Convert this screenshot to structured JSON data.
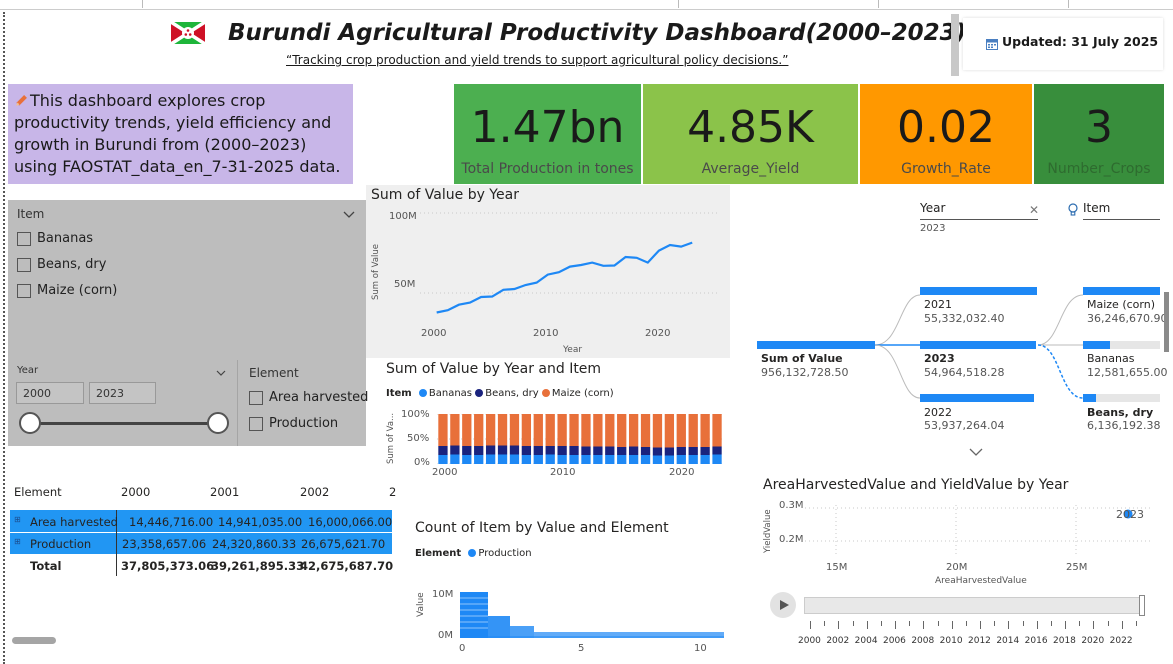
{
  "header": {
    "title": "Burundi Agricultural Productivity Dashboard(2000–2023)",
    "subtitle": "“Tracking crop production and yield trends to support agricultural policy decisions.”",
    "updated": "Updated: 31 July 2025"
  },
  "description": "This dashboard explores crop productivity trends, yield efficiency and growth in Burundi from (2000–2023) using FAOSTAT_data_en_7-31-2025 data.",
  "kpis": [
    {
      "value": "1.47bn",
      "label": "Total Production in tones",
      "color": "#4caf50"
    },
    {
      "value": "4.85K",
      "label": "Average_Yield",
      "color": "#8bc34a"
    },
    {
      "value": "0.02",
      "label": "Growth_Rate",
      "color": "#ff9800"
    },
    {
      "value": "3",
      "label": "Number_Crops",
      "color": "#388e3c"
    }
  ],
  "item_slicer": {
    "title": "Item",
    "options": [
      "Bananas",
      "Beans, dry",
      "Maize (corn)"
    ]
  },
  "year_slicer": {
    "title": "Year",
    "from": "2000",
    "to": "2023",
    "range_fraction": [
      0,
      1
    ]
  },
  "element_slicer": {
    "title": "Element",
    "options": [
      "Area harvested",
      "Production"
    ]
  },
  "matrix": {
    "headers": [
      "Element",
      "2000",
      "2001",
      "2002",
      "2"
    ],
    "rows": [
      {
        "label": "Area harvested",
        "values": [
          "14,446,716.00",
          "14,941,035.00",
          "16,000,066.00"
        ]
      },
      {
        "label": "Production",
        "values": [
          "23,358,657.06",
          "24,320,860.33",
          "26,675,621.70"
        ]
      }
    ],
    "total": {
      "label": "Total",
      "values": [
        "37,805,373.06",
        "39,261,895.33",
        "42,675,687.70"
      ]
    }
  },
  "chart_data": [
    {
      "type": "line",
      "title": "Sum of Value by Year",
      "xlabel": "Year",
      "ylabel": "Sum of Value",
      "x_ticks": [
        "2000",
        "2010",
        "2020"
      ],
      "y_ticks": [
        "100M",
        "50M"
      ],
      "ylim": [
        30000000,
        105000000
      ],
      "x": [
        2000,
        2001,
        2002,
        2003,
        2004,
        2005,
        2006,
        2007,
        2008,
        2009,
        2010,
        2011,
        2012,
        2013,
        2014,
        2015,
        2016,
        2017,
        2018,
        2019,
        2020,
        2021,
        2022,
        2023
      ],
      "series": [
        {
          "values": [
            37805373,
            39261895,
            42675688,
            44000000,
            47500000,
            47800000,
            52000000,
            52500000,
            55000000,
            56500000,
            61500000,
            63000000,
            66500000,
            67500000,
            69000000,
            67000000,
            67200000,
            72500000,
            72000000,
            69000000,
            76500000,
            80000000,
            79000000,
            81500000
          ]
        }
      ],
      "color": "#1e88f5"
    },
    {
      "type": "bar",
      "title": "Sum of Value by Year and Item",
      "stacked_percent": true,
      "legend_title": "Item",
      "ylabel": "Sum of Va...",
      "x_ticks": [
        "2000",
        "2010",
        "2020"
      ],
      "y_ticks": [
        "100%",
        "50%",
        "0%"
      ],
      "categories": [
        "2000",
        "2001",
        "2002",
        "2003",
        "2004",
        "2005",
        "2006",
        "2007",
        "2008",
        "2009",
        "2010",
        "2011",
        "2012",
        "2013",
        "2014",
        "2015",
        "2016",
        "2017",
        "2018",
        "2019",
        "2020",
        "2021",
        "2022",
        "2023"
      ],
      "series": [
        {
          "name": "Bananas",
          "color": "#1e88f5",
          "values": [
            18,
            19,
            18,
            18,
            19,
            19,
            19,
            18,
            18,
            19,
            18,
            18,
            18,
            18,
            18,
            18,
            18,
            18,
            17,
            17,
            18,
            18,
            18,
            19
          ]
        },
        {
          "name": "Beans, dry",
          "color": "#1a237e",
          "values": [
            18,
            18,
            18,
            18,
            18,
            18,
            18,
            18,
            18,
            17,
            18,
            18,
            17,
            17,
            17,
            16,
            17,
            16,
            16,
            16,
            16,
            16,
            16,
            16
          ]
        },
        {
          "name": "Maize (corn)",
          "color": "#e8703a",
          "values": [
            64,
            63,
            64,
            64,
            63,
            63,
            63,
            64,
            64,
            64,
            64,
            64,
            65,
            65,
            65,
            66,
            65,
            66,
            67,
            67,
            66,
            66,
            66,
            65
          ]
        }
      ]
    },
    {
      "type": "bar",
      "title": "Count of Item by Value and Element",
      "legend_title": "Element",
      "series_name": "Production",
      "ylabel": "Value",
      "x_ticks": [
        "0",
        "5",
        "10"
      ],
      "y_ticks": [
        "10M",
        "0M"
      ],
      "color": "#1e88f5"
    },
    {
      "type": "scatter",
      "title": "AreaHarvestedValue and YieldValue by Year",
      "xlabel": "AreaHarvestedValue",
      "ylabel": "YieldValue",
      "x_ticks": [
        "15M",
        "20M",
        "25M"
      ],
      "y_ticks": [
        "0.3M",
        "0.2M"
      ],
      "point_label": "2023",
      "play_axis": [
        "2000",
        "2002",
        "2004",
        "2006",
        "2008",
        "2010",
        "2012",
        "2014",
        "2016",
        "2018",
        "2020",
        "2022"
      ],
      "color": "#1e88f5"
    }
  ],
  "decomp_tree": {
    "year_filter_label": "Year",
    "year_filter_value": "2023",
    "item_filter_label": "Item",
    "root": {
      "label": "Sum of Value",
      "value": "956,132,728.50"
    },
    "level1": [
      {
        "label": "2021",
        "value": "55,332,032.40",
        "bold": false
      },
      {
        "label": "2023",
        "value": "54,964,518.28",
        "bold": true
      },
      {
        "label": "2022",
        "value": "53,937,264.04",
        "bold": false
      }
    ],
    "level2": [
      {
        "label": "Maize (corn)",
        "value": "36,246,670.90",
        "bold": false
      },
      {
        "label": "Bananas",
        "value": "12,581,655.00",
        "bold": false
      },
      {
        "label": "Beans, dry",
        "value": "6,136,192.38",
        "bold": true
      }
    ]
  }
}
